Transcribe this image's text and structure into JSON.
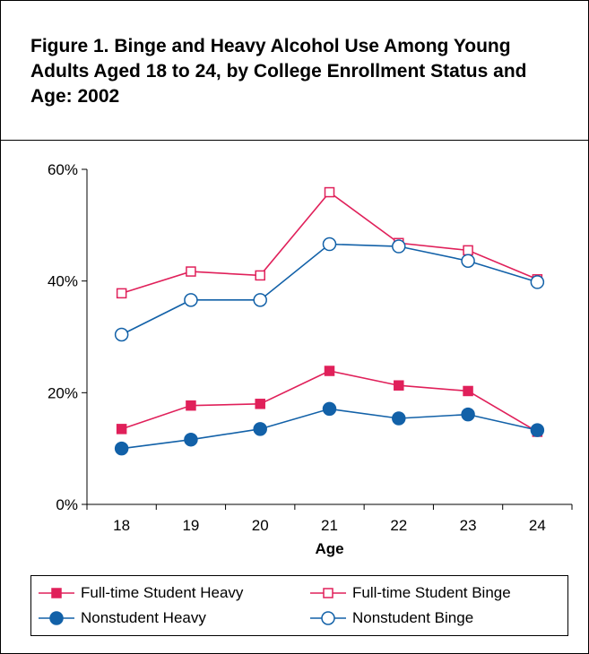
{
  "title": "Figure 1.  Binge and Heavy Alcohol Use Among Young Adults Aged 18 to 24, by College Enrollment Status and Age: 2002",
  "chart_data": {
    "type": "line",
    "title": "Figure 1.  Binge and Heavy Alcohol Use Among Young Adults Aged 18 to 24, by College Enrollment Status and Age: 2002",
    "x": [
      18,
      19,
      20,
      21,
      22,
      23,
      24
    ],
    "xticklabels": [
      "18",
      "19",
      "20",
      "21",
      "22",
      "23",
      "24"
    ],
    "xlabel": "Age",
    "ylabel": "",
    "ylim": [
      0,
      60
    ],
    "yticks": [
      0,
      20,
      40,
      60
    ],
    "yticklabels": [
      "0%",
      "20%",
      "40%",
      "60%"
    ],
    "grid": false,
    "legend_position": "bottom",
    "series": [
      {
        "name": "Full-time Student Heavy",
        "values": [
          13.5,
          17.7,
          18.0,
          23.9,
          21.3,
          20.3,
          13.0
        ],
        "color": "#e0205a",
        "marker": "square",
        "filled": true
      },
      {
        "name": "Full-time Student Binge",
        "values": [
          37.8,
          41.7,
          41.0,
          55.9,
          46.8,
          45.5,
          40.3
        ],
        "color": "#e0205a",
        "marker": "square",
        "filled": false
      },
      {
        "name": "Nonstudent Heavy",
        "values": [
          10.0,
          11.6,
          13.5,
          17.1,
          15.4,
          16.1,
          13.3
        ],
        "color": "#1261a8",
        "marker": "circle",
        "filled": true
      },
      {
        "name": "Nonstudent Binge",
        "values": [
          30.4,
          36.6,
          36.6,
          46.6,
          46.2,
          43.6,
          39.8
        ],
        "color": "#1261a8",
        "marker": "circle",
        "filled": false
      }
    ]
  }
}
